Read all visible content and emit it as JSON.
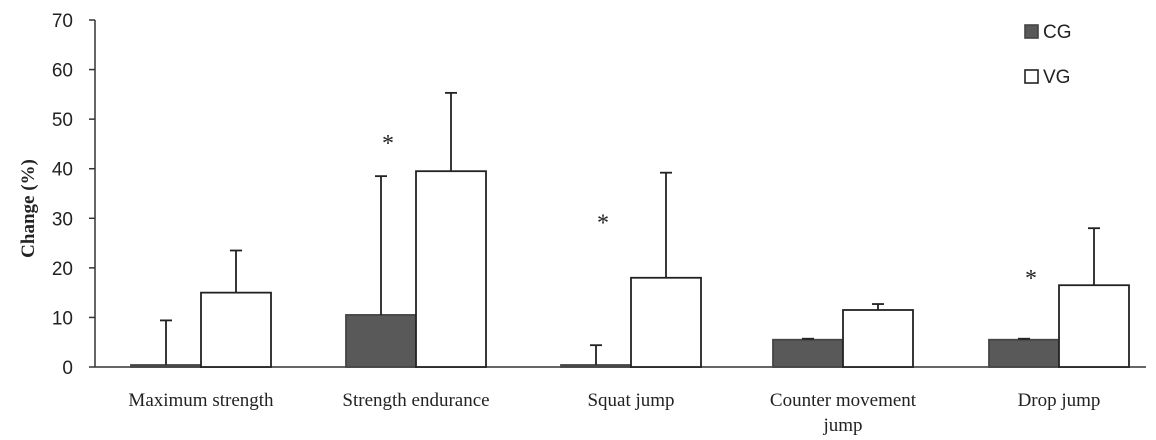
{
  "chart_data": {
    "type": "bar",
    "title": "",
    "xlabel": "",
    "ylabel": "Change  (%)",
    "ylim": [
      0,
      70
    ],
    "yticks": [
      0,
      10,
      20,
      30,
      40,
      50,
      60,
      70
    ],
    "grid": false,
    "legend_position": "top-right",
    "categories": [
      [
        "Maximum strength"
      ],
      [
        "Strength endurance"
      ],
      [
        "Squat jump"
      ],
      [
        "Counter movement",
        "jump"
      ],
      [
        "Drop jump"
      ]
    ],
    "series": [
      {
        "name": "CG",
        "color": "#595959",
        "values": [
          0.4,
          10.5,
          0.4,
          5.5,
          5.5
        ],
        "errors": [
          9.0,
          28.0,
          4.0,
          0.2,
          0.2
        ]
      },
      {
        "name": "VG",
        "color": "#ffffff",
        "values": [
          15,
          39.5,
          18,
          11.5,
          16.5
        ],
        "errors": [
          8.5,
          15.8,
          21.2,
          1.2,
          11.5
        ]
      }
    ],
    "significance": [
      "",
      "*",
      "*",
      "",
      "*"
    ],
    "significance_marker": "*"
  }
}
